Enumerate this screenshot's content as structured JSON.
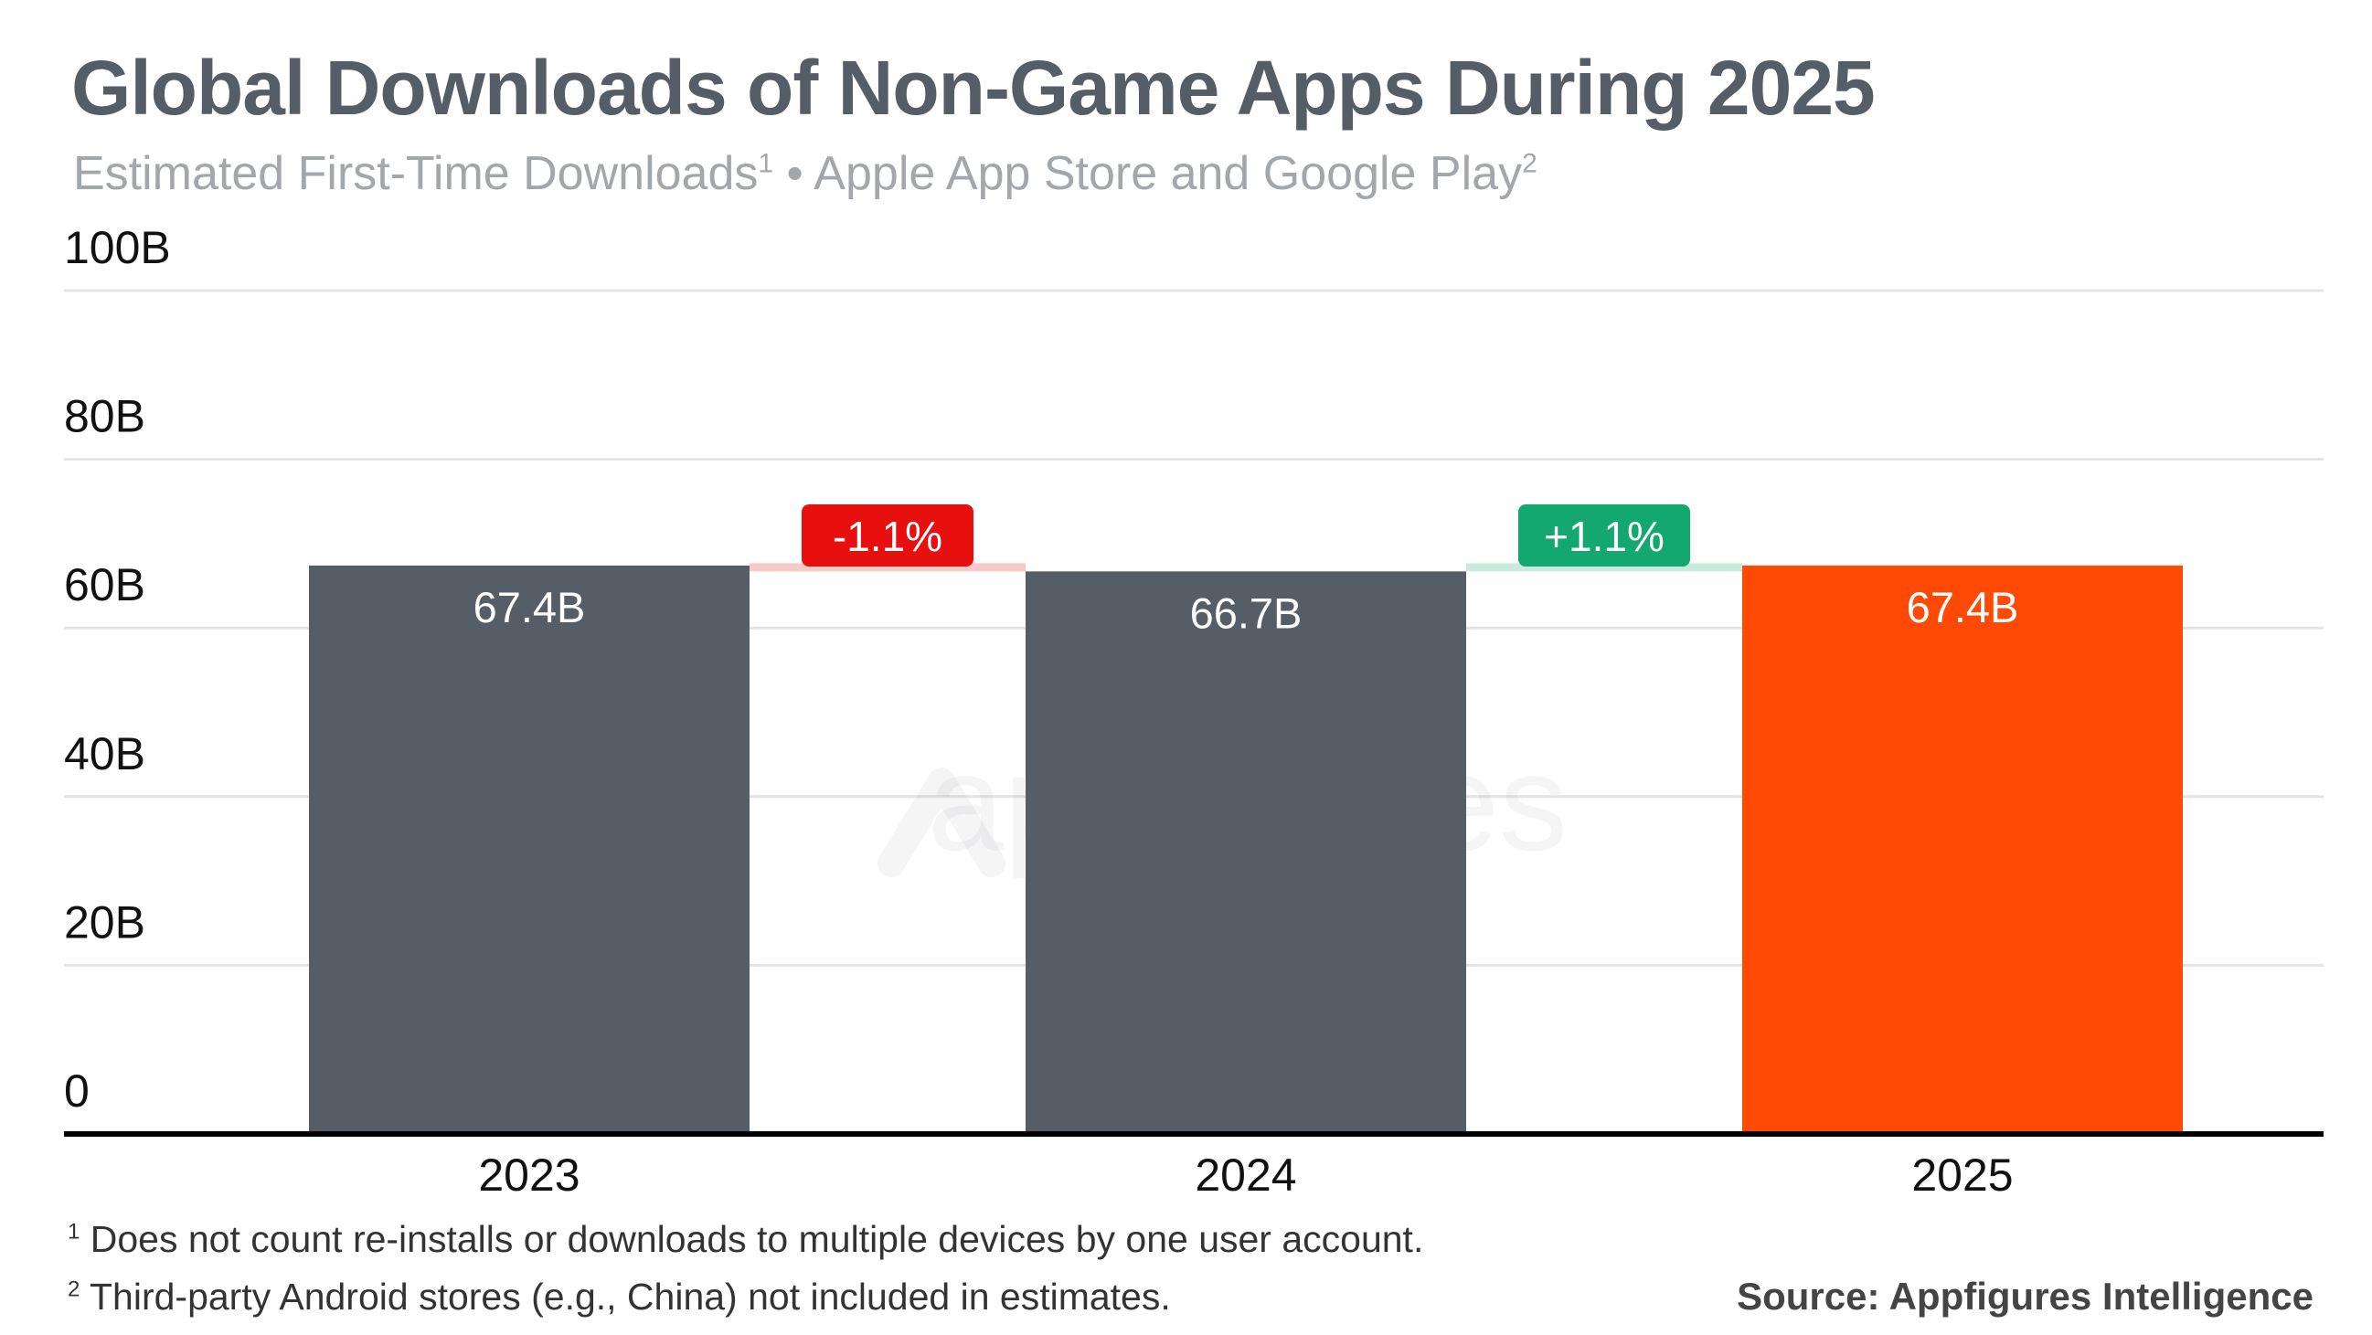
{
  "title": "Global Downloads of Non-Game Apps During 2025",
  "subtitle": {
    "text1": "Estimated First-Time Downloads",
    "sup1": "1",
    "text2": " • Apple App Store and Google Play",
    "sup2": "2"
  },
  "footnotes": [
    {
      "mark": "1",
      "text": "Does not count re-installs or downloads to multiple devices by one user account."
    },
    {
      "mark": "2",
      "text": "Third-party Android stores (e.g., China) not included in estimates."
    }
  ],
  "source": "Source: Appfigures Intelligence",
  "watermark": "appfigures",
  "chart_data": {
    "type": "bar",
    "categories": [
      "2023",
      "2024",
      "2025"
    ],
    "values": [
      67.4,
      66.7,
      67.4
    ],
    "data_labels": [
      "67.4B",
      "66.7B",
      "67.4B"
    ],
    "bar_colors": [
      "#555d66",
      "#555d66",
      "#ff4a05"
    ],
    "ylim": [
      0,
      100
    ],
    "yticks": [
      0,
      20,
      40,
      60,
      80,
      100
    ],
    "ytick_labels": [
      "0",
      "20B",
      "40B",
      "60B",
      "80B",
      "100B"
    ],
    "grid": true,
    "changes": [
      {
        "label": "-1.1%",
        "color": "#e8100e",
        "tint": "#f8c9c9"
      },
      {
        "label": "+1.1%",
        "color": "#12a870",
        "tint": "#c9ebdd"
      }
    ]
  }
}
